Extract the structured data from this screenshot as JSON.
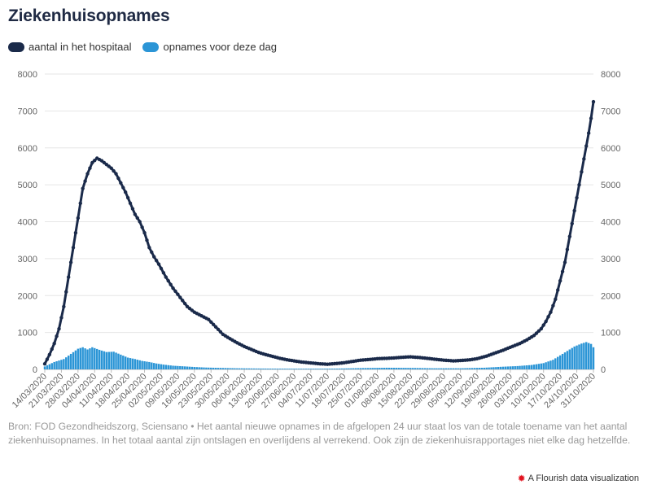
{
  "title": "Ziekenhuisopnames",
  "legend": [
    {
      "label": "aantal in het hospitaal",
      "color": "#1a2a4a"
    },
    {
      "label": "opnames voor deze dag",
      "color": "#2b95d6"
    }
  ],
  "source_text": "Bron: FOD Gezondheidszorg, Sciensano • Het aantal nieuwe opnames in de afgelopen 24 uur staat los van de totale toename van het aantal ziekenhuisopnames. In het totaal aantal zijn ontslagen en overlijdens al verrekend. Ook zijn de ziekenhuisrapportages niet elke dag hetzelfde.",
  "credit": {
    "label": "A Flourish data visualization",
    "icon": "flourish-icon"
  },
  "chart_data": {
    "type": "line+bar",
    "start_date": "14/03/2020",
    "end_date": "31/10/2020",
    "x_tick_labels": [
      "14/03/2020",
      "21/03/2020",
      "28/03/2020",
      "04/04/2020",
      "11/04/2020",
      "18/04/2020",
      "25/04/2020",
      "02/05/2020",
      "09/05/2020",
      "16/05/2020",
      "23/05/2020",
      "30/05/2020",
      "06/06/2020",
      "13/06/2020",
      "20/06/2020",
      "27/06/2020",
      "04/07/2020",
      "11/07/2020",
      "18/07/2020",
      "25/07/2020",
      "01/08/2020",
      "08/08/2020",
      "15/08/2020",
      "22/08/2020",
      "29/08/2020",
      "05/09/2020",
      "12/09/2020",
      "19/09/2020",
      "26/09/2020",
      "03/10/2020",
      "10/10/2020",
      "17/10/2020",
      "24/10/2020",
      "31/10/2020"
    ],
    "y_ticks": [
      0,
      1000,
      2000,
      3000,
      4000,
      5000,
      6000,
      7000,
      8000
    ],
    "ylim": [
      0,
      8000
    ],
    "grid": true,
    "series": [
      {
        "name": "aantal in het hospitaal",
        "type": "line",
        "color": "#1a2a4a",
        "anchors": [
          [
            "14/03/2020",
            150
          ],
          [
            "16/03/2020",
            400
          ],
          [
            "18/03/2020",
            700
          ],
          [
            "20/03/2020",
            1100
          ],
          [
            "22/03/2020",
            1700
          ],
          [
            "24/03/2020",
            2500
          ],
          [
            "26/03/2020",
            3300
          ],
          [
            "28/03/2020",
            4100
          ],
          [
            "30/03/2020",
            4900
          ],
          [
            "01/04/2020",
            5300
          ],
          [
            "03/04/2020",
            5600
          ],
          [
            "05/04/2020",
            5720
          ],
          [
            "07/04/2020",
            5650
          ],
          [
            "09/04/2020",
            5550
          ],
          [
            "11/04/2020",
            5450
          ],
          [
            "13/04/2020",
            5300
          ],
          [
            "15/04/2020",
            5050
          ],
          [
            "17/04/2020",
            4800
          ],
          [
            "19/04/2020",
            4500
          ],
          [
            "21/04/2020",
            4200
          ],
          [
            "23/04/2020",
            4000
          ],
          [
            "25/04/2020",
            3700
          ],
          [
            "27/04/2020",
            3300
          ],
          [
            "29/04/2020",
            3050
          ],
          [
            "01/05/2020",
            2850
          ],
          [
            "04/05/2020",
            2500
          ],
          [
            "07/05/2020",
            2200
          ],
          [
            "10/05/2020",
            1950
          ],
          [
            "13/05/2020",
            1700
          ],
          [
            "16/05/2020",
            1550
          ],
          [
            "19/05/2020",
            1450
          ],
          [
            "22/05/2020",
            1350
          ],
          [
            "25/05/2020",
            1150
          ],
          [
            "28/05/2020",
            950
          ],
          [
            "31/05/2020",
            830
          ],
          [
            "03/06/2020",
            720
          ],
          [
            "06/06/2020",
            620
          ],
          [
            "09/06/2020",
            540
          ],
          [
            "12/06/2020",
            460
          ],
          [
            "15/06/2020",
            400
          ],
          [
            "18/06/2020",
            350
          ],
          [
            "21/06/2020",
            300
          ],
          [
            "24/06/2020",
            260
          ],
          [
            "27/06/2020",
            230
          ],
          [
            "30/06/2020",
            200
          ],
          [
            "04/07/2020",
            175
          ],
          [
            "08/07/2020",
            150
          ],
          [
            "11/07/2020",
            140
          ],
          [
            "15/07/2020",
            160
          ],
          [
            "18/07/2020",
            180
          ],
          [
            "22/07/2020",
            220
          ],
          [
            "25/07/2020",
            250
          ],
          [
            "29/07/2020",
            270
          ],
          [
            "01/08/2020",
            290
          ],
          [
            "05/08/2020",
            300
          ],
          [
            "08/08/2020",
            310
          ],
          [
            "12/08/2020",
            330
          ],
          [
            "15/08/2020",
            340
          ],
          [
            "19/08/2020",
            320
          ],
          [
            "22/08/2020",
            300
          ],
          [
            "26/08/2020",
            270
          ],
          [
            "29/08/2020",
            250
          ],
          [
            "02/09/2020",
            230
          ],
          [
            "05/09/2020",
            240
          ],
          [
            "09/09/2020",
            260
          ],
          [
            "12/09/2020",
            290
          ],
          [
            "16/09/2020",
            360
          ],
          [
            "19/09/2020",
            430
          ],
          [
            "23/09/2020",
            520
          ],
          [
            "26/09/2020",
            600
          ],
          [
            "30/09/2020",
            700
          ],
          [
            "03/10/2020",
            800
          ],
          [
            "06/10/2020",
            920
          ],
          [
            "09/10/2020",
            1100
          ],
          [
            "11/10/2020",
            1300
          ],
          [
            "13/10/2020",
            1550
          ],
          [
            "15/10/2020",
            1900
          ],
          [
            "17/10/2020",
            2400
          ],
          [
            "19/10/2020",
            2900
          ],
          [
            "21/10/2020",
            3600
          ],
          [
            "23/10/2020",
            4300
          ],
          [
            "25/10/2020",
            5000
          ],
          [
            "27/10/2020",
            5700
          ],
          [
            "29/10/2020",
            6400
          ],
          [
            "30/10/2020",
            6800
          ],
          [
            "31/10/2020",
            7250
          ]
        ]
      },
      {
        "name": "opnames voor deze dag",
        "type": "bar",
        "color": "#2b95d6",
        "anchors": [
          [
            "14/03/2020",
            80
          ],
          [
            "18/03/2020",
            200
          ],
          [
            "22/03/2020",
            280
          ],
          [
            "25/03/2020",
            420
          ],
          [
            "28/03/2020",
            560
          ],
          [
            "30/03/2020",
            600
          ],
          [
            "01/04/2020",
            540
          ],
          [
            "03/04/2020",
            600
          ],
          [
            "06/04/2020",
            530
          ],
          [
            "09/04/2020",
            470
          ],
          [
            "12/04/2020",
            480
          ],
          [
            "15/04/2020",
            400
          ],
          [
            "18/04/2020",
            320
          ],
          [
            "21/04/2020",
            280
          ],
          [
            "24/04/2020",
            230
          ],
          [
            "27/04/2020",
            200
          ],
          [
            "30/04/2020",
            160
          ],
          [
            "03/05/2020",
            130
          ],
          [
            "07/05/2020",
            100
          ],
          [
            "11/05/2020",
            85
          ],
          [
            "16/05/2020",
            65
          ],
          [
            "21/05/2020",
            50
          ],
          [
            "27/05/2020",
            40
          ],
          [
            "03/06/2020",
            30
          ],
          [
            "10/06/2020",
            25
          ],
          [
            "20/06/2020",
            20
          ],
          [
            "01/07/2020",
            18
          ],
          [
            "15/07/2020",
            22
          ],
          [
            "25/07/2020",
            35
          ],
          [
            "05/08/2020",
            45
          ],
          [
            "15/08/2020",
            40
          ],
          [
            "25/08/2020",
            30
          ],
          [
            "05/09/2020",
            30
          ],
          [
            "15/09/2020",
            45
          ],
          [
            "22/09/2020",
            70
          ],
          [
            "29/09/2020",
            90
          ],
          [
            "05/10/2020",
            120
          ],
          [
            "10/10/2020",
            170
          ],
          [
            "14/10/2020",
            260
          ],
          [
            "17/10/2020",
            380
          ],
          [
            "20/10/2020",
            500
          ],
          [
            "23/10/2020",
            620
          ],
          [
            "26/10/2020",
            700
          ],
          [
            "28/10/2020",
            740
          ],
          [
            "30/10/2020",
            690
          ],
          [
            "31/10/2020",
            600
          ]
        ]
      }
    ]
  }
}
